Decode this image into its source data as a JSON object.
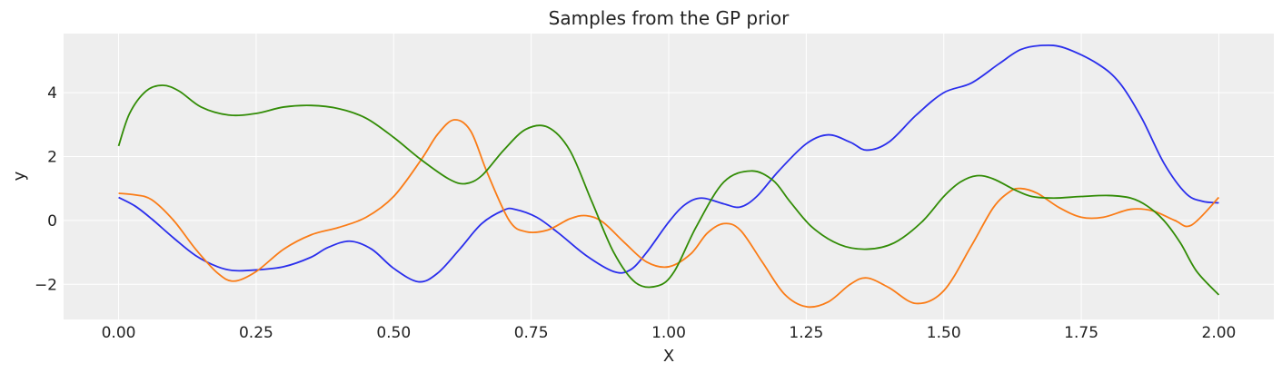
{
  "chart_data": {
    "type": "line",
    "title": "Samples from the GP prior",
    "xlabel": "X",
    "ylabel": "y",
    "xlim": [
      -0.1,
      2.1
    ],
    "ylim": [
      -3.1,
      5.85
    ],
    "xticks": [
      0.0,
      0.25,
      0.5,
      0.75,
      1.0,
      1.25,
      1.5,
      1.75,
      2.0
    ],
    "xtick_labels": [
      "0.00",
      "0.25",
      "0.50",
      "0.75",
      "1.00",
      "1.25",
      "1.50",
      "1.75",
      "2.00"
    ],
    "yticks": [
      -2,
      0,
      2,
      4
    ],
    "ytick_labels": [
      "−2",
      "0",
      "2",
      "4"
    ],
    "grid": true,
    "background": "#eeeeee",
    "grid_color": "#ffffff",
    "series": [
      {
        "color": "#2a2eec",
        "x": [
          0.0,
          0.03,
          0.06,
          0.1,
          0.14,
          0.18,
          0.21,
          0.25,
          0.3,
          0.35,
          0.38,
          0.42,
          0.46,
          0.5,
          0.545,
          0.58,
          0.62,
          0.66,
          0.7,
          0.72,
          0.76,
          0.8,
          0.85,
          0.9,
          0.93,
          0.96,
          1.0,
          1.03,
          1.06,
          1.1,
          1.13,
          1.16,
          1.2,
          1.25,
          1.29,
          1.33,
          1.36,
          1.4,
          1.45,
          1.5,
          1.55,
          1.6,
          1.64,
          1.68,
          1.72,
          1.78,
          1.82,
          1.86,
          1.9,
          1.94,
          1.97,
          2.0
        ],
        "y": [
          0.72,
          0.45,
          0.05,
          -0.55,
          -1.1,
          -1.45,
          -1.57,
          -1.55,
          -1.45,
          -1.15,
          -0.85,
          -0.65,
          -0.9,
          -1.5,
          -1.92,
          -1.65,
          -0.9,
          -0.1,
          0.32,
          0.35,
          0.1,
          -0.4,
          -1.1,
          -1.6,
          -1.55,
          -1.0,
          -0.05,
          0.5,
          0.7,
          0.52,
          0.42,
          0.75,
          1.55,
          2.4,
          2.68,
          2.45,
          2.2,
          2.45,
          3.3,
          4.0,
          4.3,
          4.9,
          5.35,
          5.48,
          5.4,
          4.9,
          4.3,
          3.2,
          1.8,
          0.85,
          0.6,
          0.55
        ]
      },
      {
        "color": "#fa7c17",
        "x": [
          0.0,
          0.03,
          0.06,
          0.1,
          0.14,
          0.18,
          0.21,
          0.25,
          0.3,
          0.35,
          0.4,
          0.45,
          0.5,
          0.55,
          0.58,
          0.61,
          0.64,
          0.67,
          0.71,
          0.74,
          0.78,
          0.82,
          0.85,
          0.88,
          0.92,
          0.96,
          1.0,
          1.04,
          1.07,
          1.1,
          1.13,
          1.17,
          1.21,
          1.25,
          1.29,
          1.33,
          1.36,
          1.4,
          1.45,
          1.5,
          1.55,
          1.59,
          1.62,
          1.64,
          1.67,
          1.71,
          1.75,
          1.79,
          1.84,
          1.88,
          1.92,
          1.95,
          2.0
        ],
        "y": [
          0.85,
          0.8,
          0.65,
          0.0,
          -0.9,
          -1.65,
          -1.9,
          -1.6,
          -0.9,
          -0.45,
          -0.22,
          0.1,
          0.75,
          1.9,
          2.7,
          3.15,
          2.8,
          1.5,
          0.0,
          -0.35,
          -0.3,
          0.05,
          0.15,
          -0.05,
          -0.7,
          -1.3,
          -1.45,
          -1.05,
          -0.4,
          -0.1,
          -0.3,
          -1.3,
          -2.3,
          -2.7,
          -2.55,
          -2.0,
          -1.8,
          -2.1,
          -2.6,
          -2.2,
          -0.8,
          0.4,
          0.9,
          1.0,
          0.85,
          0.4,
          0.1,
          0.1,
          0.35,
          0.3,
          0.0,
          -0.15,
          0.72
        ]
      },
      {
        "color": "#328c06",
        "x": [
          0.0,
          0.02,
          0.05,
          0.08,
          0.11,
          0.15,
          0.2,
          0.25,
          0.3,
          0.35,
          0.4,
          0.45,
          0.5,
          0.55,
          0.6,
          0.63,
          0.66,
          0.7,
          0.74,
          0.78,
          0.82,
          0.86,
          0.9,
          0.94,
          0.98,
          1.01,
          1.05,
          1.1,
          1.15,
          1.19,
          1.22,
          1.26,
          1.31,
          1.36,
          1.41,
          1.46,
          1.5,
          1.53,
          1.56,
          1.59,
          1.63,
          1.66,
          1.7,
          1.75,
          1.8,
          1.84,
          1.87,
          1.9,
          1.93,
          1.96,
          2.0
        ],
        "y": [
          2.33,
          3.35,
          4.05,
          4.23,
          4.05,
          3.55,
          3.3,
          3.35,
          3.55,
          3.6,
          3.5,
          3.2,
          2.6,
          1.9,
          1.3,
          1.15,
          1.4,
          2.2,
          2.85,
          2.92,
          2.2,
          0.6,
          -1.0,
          -1.95,
          -2.05,
          -1.6,
          -0.2,
          1.2,
          1.55,
          1.25,
          0.6,
          -0.2,
          -0.75,
          -0.9,
          -0.7,
          -0.05,
          0.75,
          1.2,
          1.4,
          1.3,
          0.95,
          0.75,
          0.7,
          0.75,
          0.78,
          0.7,
          0.45,
          0.0,
          -0.7,
          -1.6,
          -2.33
        ]
      }
    ]
  }
}
